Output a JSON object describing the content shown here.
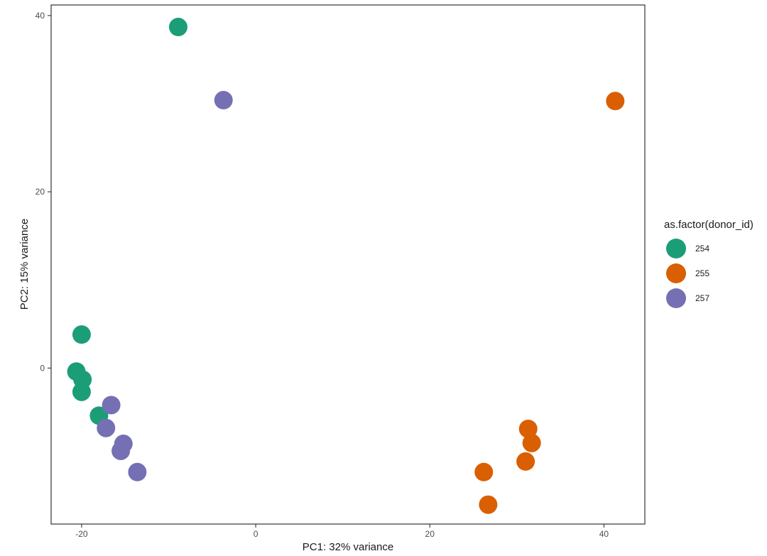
{
  "chart_data": {
    "type": "scatter",
    "xlabel": "PC1: 32% variance",
    "ylabel": "PC2: 15% variance",
    "xlim": [
      -23.5,
      44.7
    ],
    "ylim": [
      -17.7,
      41.2
    ],
    "xticks": [
      -20,
      0,
      20,
      40
    ],
    "yticks": [
      0,
      20,
      40
    ],
    "grid": false,
    "legend": {
      "title": "as.factor(donor_id)",
      "position": "right"
    },
    "series": [
      {
        "name": "254",
        "color": "#1b9e77",
        "points": [
          [
            -8.9,
            38.7
          ],
          [
            -20.0,
            3.8
          ],
          [
            -20.6,
            -0.4
          ],
          [
            -19.9,
            -1.3
          ],
          [
            -20.0,
            -2.7
          ],
          [
            -18.0,
            -5.4
          ]
        ]
      },
      {
        "name": "255",
        "color": "#d95f02",
        "points": [
          [
            41.3,
            30.3
          ],
          [
            31.3,
            -6.9
          ],
          [
            31.7,
            -8.5
          ],
          [
            31.0,
            -10.6
          ],
          [
            26.2,
            -11.8
          ],
          [
            26.7,
            -15.5
          ]
        ]
      },
      {
        "name": "257",
        "color": "#7570b3",
        "points": [
          [
            -3.7,
            30.4
          ],
          [
            -16.6,
            -4.2
          ],
          [
            -17.2,
            -6.8
          ],
          [
            -15.2,
            -8.6
          ],
          [
            -15.5,
            -9.4
          ],
          [
            -13.6,
            -11.8
          ]
        ]
      }
    ]
  }
}
